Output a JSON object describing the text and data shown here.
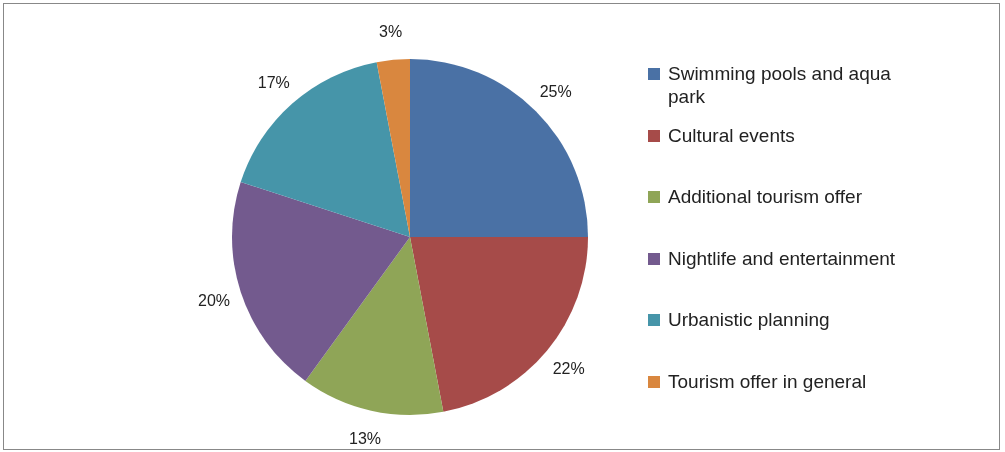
{
  "chart_data": {
    "type": "pie",
    "categories": [
      "Swimming pools and aqua park",
      "Cultural events",
      "Additional tourism offer",
      "Nightlife and entertainment",
      "Urbanistic planning",
      "Tourism offer in general"
    ],
    "values": [
      25,
      22,
      13,
      20,
      17,
      3
    ],
    "value_labels": [
      "25%",
      "22%",
      "13%",
      "20%",
      "17%",
      "3%"
    ],
    "colors": [
      "#4a71a5",
      "#a64b49",
      "#8fa557",
      "#735a8e",
      "#4695a9",
      "#d9873f"
    ],
    "legend": "right"
  }
}
